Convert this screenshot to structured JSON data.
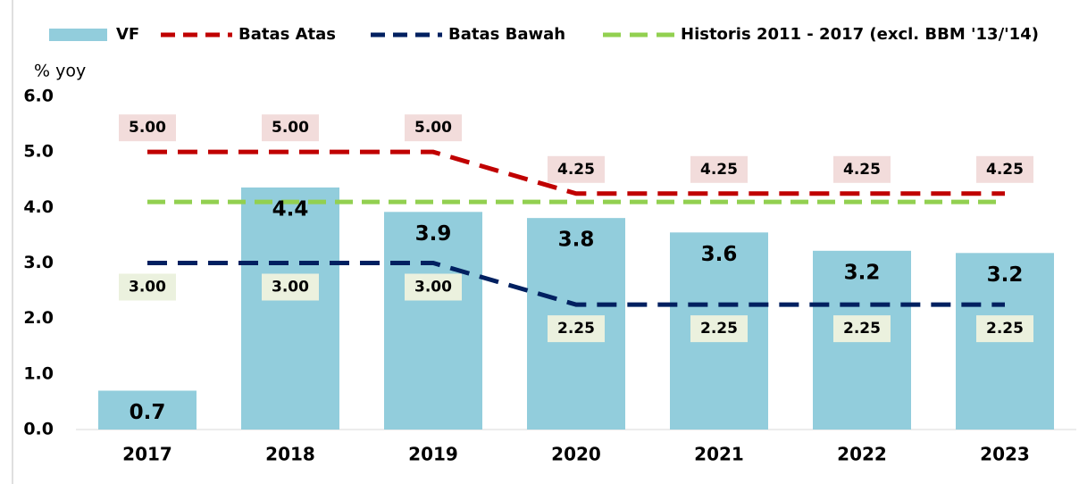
{
  "chart_data": {
    "type": "bar_line",
    "y_axis_label": "% yoy",
    "categories": [
      "2017",
      "2018",
      "2019",
      "2020",
      "2021",
      "2022",
      "2023"
    ],
    "series": [
      {
        "name": "VF",
        "type": "bar",
        "color": "#92cddc",
        "values": [
          0.7,
          4.36,
          3.92,
          3.81,
          3.55,
          3.22,
          3.18
        ],
        "value_labels": [
          "0.7",
          "4.4",
          "3.9",
          "3.8",
          "3.6",
          "3.2",
          "3.2"
        ]
      },
      {
        "name": "Batas Atas",
        "type": "line",
        "color": "#c00000",
        "values": [
          5,
          5,
          5,
          4.25,
          4.25,
          4.25,
          4.25
        ],
        "value_labels": [
          "5.00",
          "5.00",
          "5.00",
          "4.25",
          "4.25",
          "4.25",
          "4.25"
        ],
        "label_fill": "#f2dcdb",
        "label_side": "above"
      },
      {
        "name": "Batas Bawah",
        "type": "line",
        "color": "#002060",
        "values": [
          3,
          3,
          3,
          2.25,
          2.25,
          2.25,
          2.25
        ],
        "value_labels": [
          "3.00",
          "3.00",
          "3.00",
          "2.25",
          "2.25",
          "2.25",
          "2.25"
        ],
        "label_fill": "#ebf1de",
        "label_side": "below"
      },
      {
        "name": "Historis 2011 - 2017 (excl. BBM '13/'14)",
        "type": "line",
        "color": "#92d050",
        "values": [
          4.1,
          4.1,
          4.1,
          4.1,
          4.1,
          4.1,
          4.1
        ]
      }
    ],
    "ylim": [
      0,
      6
    ],
    "yticks": [
      {
        "value": 0,
        "label": "0.0"
      },
      {
        "value": 1,
        "label": "1.0"
      },
      {
        "value": 2,
        "label": "2.0"
      },
      {
        "value": 3,
        "label": "3.0"
      },
      {
        "value": 4,
        "label": "4.0"
      },
      {
        "value": 5,
        "label": "5.0"
      },
      {
        "value": 6,
        "label": "6.0"
      }
    ],
    "legend": "top"
  }
}
